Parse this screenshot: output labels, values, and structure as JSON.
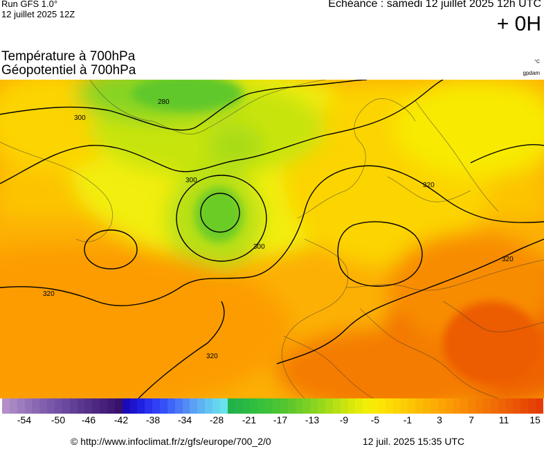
{
  "header": {
    "run_title": "Run GFS 1.0°",
    "run_date": "12 juillet 2025 12Z",
    "forecast_label": "Echéance : samedi 12 juillet 2025 12h UTC",
    "lead_time": "+ 0H"
  },
  "parameters": {
    "line1": "Température à 700hPa",
    "line2": "Géopotentiel à 700hPa",
    "unit_temperature": "°C",
    "unit_geopotential": "gpdam"
  },
  "map": {
    "contour_labels": [
      "300",
      "300",
      "300",
      "320",
      "320",
      "320",
      "320",
      "280"
    ]
  },
  "colorbar": {
    "tick_labels": [
      "-54",
      "-50",
      "-46",
      "-42",
      "-38",
      "-34",
      "-28",
      "-21",
      "-17",
      "-13",
      "-9",
      "-5",
      "-1",
      "3",
      "7",
      "11",
      "15"
    ],
    "colors": [
      "#b48ec8",
      "#a885c3",
      "#9e7cbe",
      "#9472b8",
      "#8b68b2",
      "#8260ad",
      "#7a57a8",
      "#7150a3",
      "#6a489d",
      "#634097",
      "#5b3890",
      "#543089",
      "#4d2882",
      "#46207a",
      "#3f1973",
      "#38116b",
      "#1a0ab8",
      "#1d14cc",
      "#2020e0",
      "#2a30ee",
      "#3040f4",
      "#3450f6",
      "#3e64f8",
      "#4a78f8",
      "#548bf6",
      "#5aa0f4",
      "#5eb2f2",
      "#62c4f0",
      "#66d4ee",
      "#6ae2ee",
      "#22b24a",
      "#26b648",
      "#2aba44",
      "#30be40",
      "#38c23c",
      "#40c238",
      "#4ac434",
      "#54c430",
      "#60c82c",
      "#6ccc28",
      "#7ad024",
      "#88d420",
      "#98d81c",
      "#a8dc18",
      "#b8e014",
      "#c8e410",
      "#d8e80c",
      "#e6ec0a",
      "#f2ee08",
      "#f8ea06",
      "#fce404",
      "#fcdc04",
      "#fcd404",
      "#fccc04",
      "#fcc404",
      "#fcbc04",
      "#fcb404",
      "#fcac04",
      "#fca404",
      "#fc9c04",
      "#fa9404",
      "#f88c04",
      "#f68404",
      "#f47c04",
      "#f27404",
      "#f06c04",
      "#ee6404",
      "#ec5c04",
      "#ea5404",
      "#e84c04",
      "#e64404",
      "#e43c04"
    ]
  },
  "footer": {
    "url": "© http://www.infoclimat.fr/z/gfs/europe/700_2/0",
    "generated": "12 juil. 2025 15:35 UTC"
  }
}
